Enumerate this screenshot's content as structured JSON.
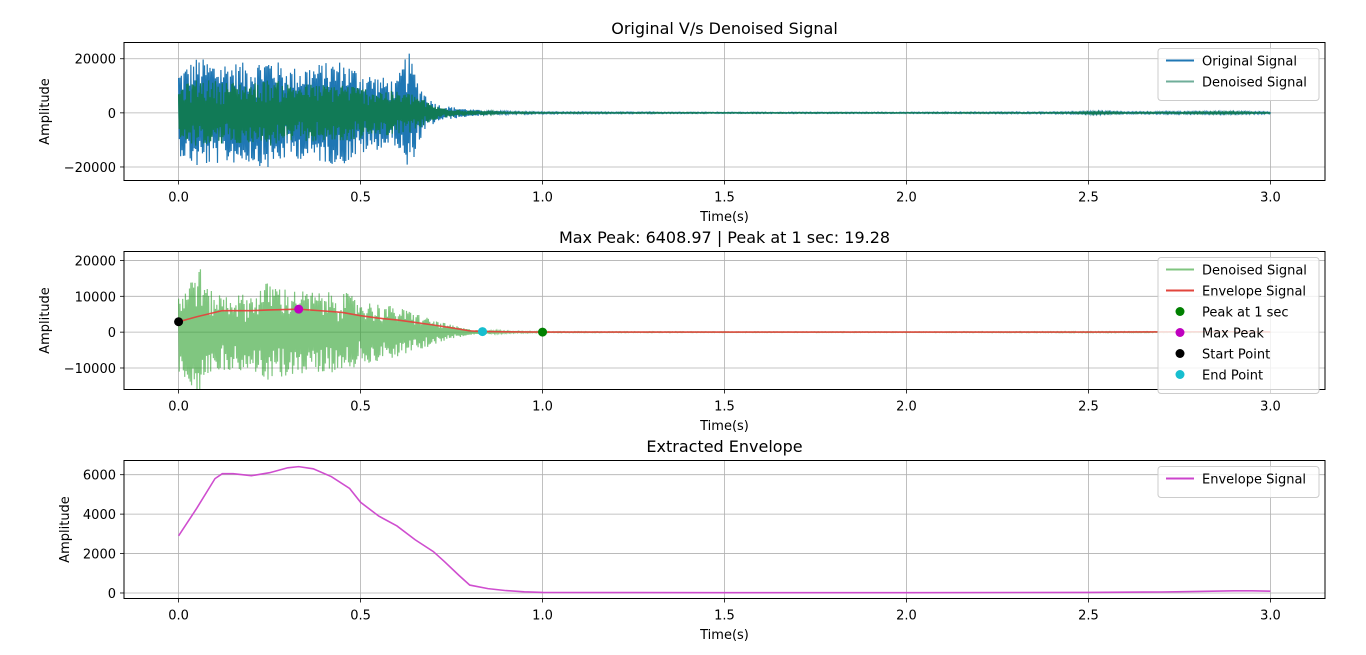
{
  "chart_data": [
    {
      "type": "line",
      "title": "Original V/s Denoised Signal",
      "xlabel": "Time(s)",
      "ylabel": "Amplitude",
      "xlim": [
        -0.15,
        3.15
      ],
      "ylim": [
        -25000,
        26000
      ],
      "xticks": [
        0.0,
        0.5,
        1.0,
        1.5,
        2.0,
        2.5,
        3.0
      ],
      "xticklabels": [
        "0.0",
        "0.5",
        "1.0",
        "1.5",
        "2.0",
        "2.5",
        "3.0"
      ],
      "yticks": [
        -20000,
        0,
        20000
      ],
      "yticklabels": [
        "−20000",
        "0",
        "20000"
      ],
      "grid": true,
      "legend_position": "upper right",
      "series": [
        {
          "name": "Original Signal",
          "color": "#1f77b4",
          "kind": "oscillation",
          "bounds": [
            [
              0.0,
              15500
            ],
            [
              0.05,
              20500
            ],
            [
              0.1,
              19000
            ],
            [
              0.2,
              18500
            ],
            [
              0.25,
              21000
            ],
            [
              0.3,
              16500
            ],
            [
              0.4,
              18500
            ],
            [
              0.45,
              19500
            ],
            [
              0.5,
              15500
            ],
            [
              0.55,
              13500
            ],
            [
              0.6,
              12000
            ],
            [
              0.63,
              23500
            ],
            [
              0.66,
              11000
            ],
            [
              0.69,
              5000
            ],
            [
              0.72,
              2800
            ],
            [
              0.8,
              1300
            ],
            [
              0.9,
              500
            ],
            [
              1.0,
              300
            ],
            [
              1.5,
              200
            ],
            [
              2.0,
              200
            ],
            [
              2.45,
              300
            ],
            [
              2.52,
              600
            ],
            [
              2.6,
              300
            ],
            [
              2.9,
              500
            ],
            [
              3.0,
              300
            ]
          ]
        },
        {
          "name": "Denoised Signal",
          "color": "#117a56",
          "kind": "oscillation",
          "bounds": [
            [
              0.0,
              9500
            ],
            [
              0.05,
              12500
            ],
            [
              0.1,
              12000
            ],
            [
              0.2,
              11000
            ],
            [
              0.25,
              12500
            ],
            [
              0.3,
              11000
            ],
            [
              0.4,
              10500
            ],
            [
              0.45,
              11000
            ],
            [
              0.5,
              9500
            ],
            [
              0.55,
              8500
            ],
            [
              0.6,
              8000
            ],
            [
              0.65,
              7000
            ],
            [
              0.69,
              3500
            ],
            [
              0.72,
              2000
            ],
            [
              0.8,
              900
            ],
            [
              0.9,
              300
            ],
            [
              1.0,
              200
            ],
            [
              1.5,
              150
            ],
            [
              2.0,
              150
            ],
            [
              2.45,
              200
            ],
            [
              2.52,
              500
            ],
            [
              2.6,
              200
            ],
            [
              2.9,
              400
            ],
            [
              3.0,
              200
            ]
          ]
        }
      ]
    },
    {
      "type": "line",
      "title": "Max Peak: 6408.97 | Peak at 1 sec: 19.28",
      "xlabel": "Time(s)",
      "ylabel": "Amplitude",
      "xlim": [
        -0.15,
        3.15
      ],
      "ylim": [
        -16000,
        22500
      ],
      "xticks": [
        0.0,
        0.5,
        1.0,
        1.5,
        2.0,
        2.5,
        3.0
      ],
      "xticklabels": [
        "0.0",
        "0.5",
        "1.0",
        "1.5",
        "2.0",
        "2.5",
        "3.0"
      ],
      "yticks": [
        -10000,
        0,
        10000,
        20000
      ],
      "yticklabels": [
        "−10000",
        "0",
        "10000",
        "20000"
      ],
      "grid": true,
      "legend_position": "upper right",
      "series": [
        {
          "name": "Denoised Signal",
          "color": "#2ca02c",
          "kind": "oscillation",
          "bounds": [
            [
              0.0,
              11000
            ],
            [
              0.03,
              14000
            ],
            [
              0.05,
              21000
            ],
            [
              0.08,
              12000
            ],
            [
              0.1,
              11000
            ],
            [
              0.2,
              10500
            ],
            [
              0.25,
              14500
            ],
            [
              0.3,
              12000
            ],
            [
              0.4,
              11000
            ],
            [
              0.45,
              11500
            ],
            [
              0.5,
              9000
            ],
            [
              0.55,
              8000
            ],
            [
              0.6,
              7000
            ],
            [
              0.65,
              5500
            ],
            [
              0.7,
              3500
            ],
            [
              0.75,
              2000
            ],
            [
              0.8,
              800
            ],
            [
              0.9,
              300
            ],
            [
              1.0,
              150
            ],
            [
              1.5,
              100
            ],
            [
              2.0,
              100
            ],
            [
              2.5,
              150
            ],
            [
              3.0,
              100
            ]
          ]
        },
        {
          "name": "Envelope Signal",
          "color": "#e2453c",
          "kind": "line",
          "x": [
            0.0,
            0.05,
            0.12,
            0.2,
            0.25,
            0.33,
            0.4,
            0.45,
            0.5,
            0.55,
            0.6,
            0.65,
            0.7,
            0.75,
            0.8,
            0.83,
            0.9,
            1.0,
            1.5,
            2.0,
            2.5,
            2.9,
            3.0
          ],
          "y": [
            2900,
            4300,
            6000,
            6000,
            6200,
            6400,
            5900,
            5500,
            4600,
            3900,
            3400,
            2700,
            2000,
            1200,
            350,
            200,
            100,
            19,
            10,
            10,
            30,
            110,
            60
          ]
        }
      ],
      "markers": [
        {
          "name": "Peak at 1 sec",
          "x": 1.0,
          "y": 19.28,
          "color": "#008000"
        },
        {
          "name": "Max Peak",
          "x": 0.33,
          "y": 6408.97,
          "color": "#bf00bf"
        },
        {
          "name": "Start Point",
          "x": 0.0,
          "y": 2900,
          "color": "#000000"
        },
        {
          "name": "End Point",
          "x": 0.835,
          "y": 150,
          "color": "#17becf"
        }
      ]
    },
    {
      "type": "line",
      "title": "Extracted Envelope",
      "xlabel": "Time(s)",
      "ylabel": "Amplitude",
      "xlim": [
        -0.15,
        3.15
      ],
      "ylim": [
        -280,
        6720
      ],
      "xticks": [
        0.0,
        0.5,
        1.0,
        1.5,
        2.0,
        2.5,
        3.0
      ],
      "xticklabels": [
        "0.0",
        "0.5",
        "1.0",
        "1.5",
        "2.0",
        "2.5",
        "3.0"
      ],
      "yticks": [
        0,
        2000,
        4000,
        6000
      ],
      "yticklabels": [
        "0",
        "2000",
        "4000",
        "6000"
      ],
      "grid": true,
      "legend_position": "upper right",
      "series": [
        {
          "name": "Envelope Signal",
          "color": "#cc44cc",
          "kind": "line",
          "x": [
            0.0,
            0.05,
            0.1,
            0.12,
            0.15,
            0.2,
            0.25,
            0.3,
            0.33,
            0.37,
            0.42,
            0.47,
            0.5,
            0.55,
            0.6,
            0.65,
            0.7,
            0.73,
            0.77,
            0.8,
            0.85,
            0.9,
            0.95,
            1.0,
            1.2,
            1.5,
            2.0,
            2.5,
            2.7,
            2.8,
            2.9,
            2.95,
            3.0
          ],
          "y": [
            2900,
            4300,
            5800,
            6050,
            6050,
            5950,
            6100,
            6350,
            6409,
            6300,
            5900,
            5300,
            4600,
            3900,
            3400,
            2700,
            2100,
            1600,
            900,
            400,
            220,
            120,
            60,
            30,
            20,
            15,
            15,
            30,
            50,
            80,
            110,
            110,
            90
          ]
        }
      ]
    }
  ]
}
